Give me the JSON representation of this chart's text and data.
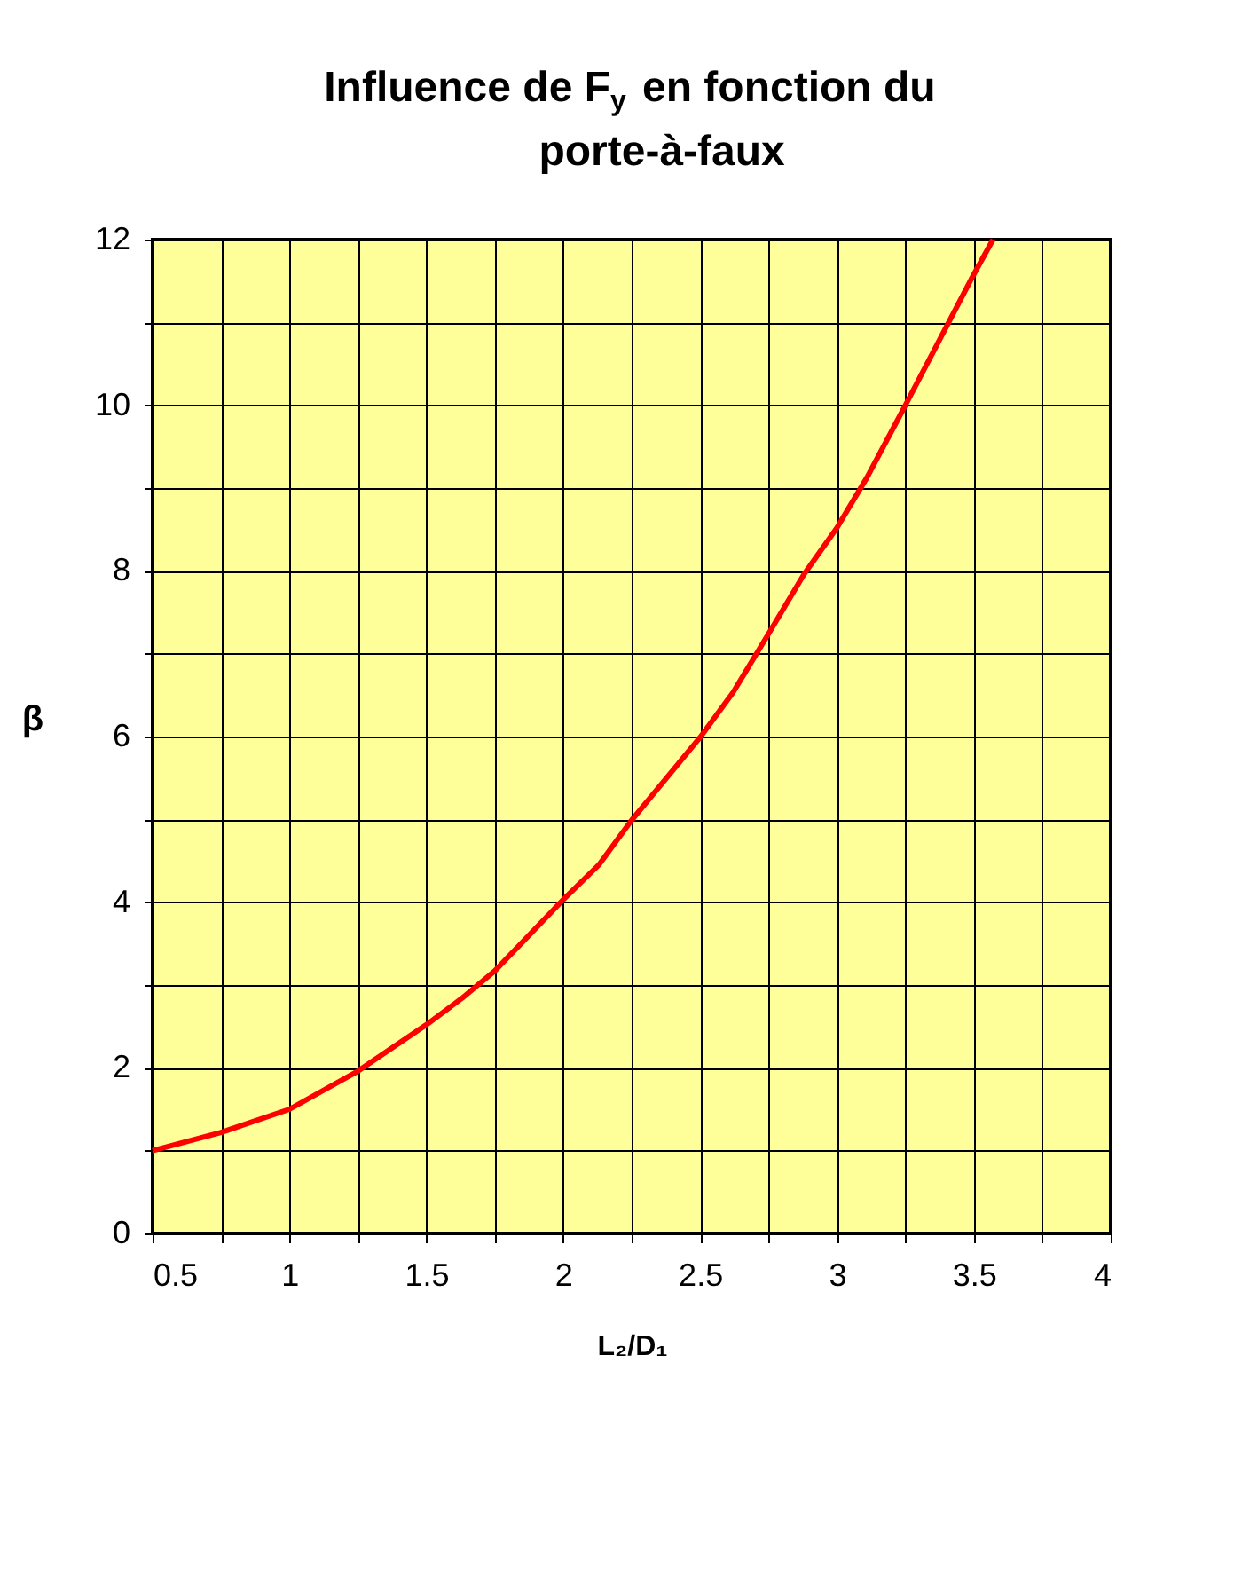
{
  "chart_data": {
    "type": "line",
    "title": "Influence de F$_{y}$ en fonction du porte-à-faux",
    "xlabel": "L₂/D₁",
    "ylabel": "β",
    "x": [
      0.5,
      0.75,
      1.0,
      1.25,
      1.5,
      1.63,
      1.75,
      2.0,
      2.13,
      2.25,
      2.5,
      2.62,
      2.75,
      2.88,
      3.0,
      3.11,
      3.25,
      3.49,
      3.57
    ],
    "series": [
      {
        "color": "#ff0000",
        "values": [
          1.0,
          1.22,
          1.5,
          1.96,
          2.52,
          2.84,
          3.17,
          4.03,
          4.45,
          4.99,
          5.99,
          6.53,
          7.24,
          7.96,
          8.52,
          9.13,
          10.0,
          11.52,
          12.0
        ]
      }
    ],
    "xlim": [
      0.5,
      4
    ],
    "ylim": [
      0,
      12
    ],
    "xticks": [
      0.5,
      {
        "value": 0.75,
        "label": null
      },
      1,
      {
        "value": 1.25,
        "label": null
      },
      1.5,
      {
        "value": 1.75,
        "label": null
      },
      2,
      {
        "value": 2.25,
        "label": null
      },
      2.5,
      {
        "value": 2.75,
        "label": null
      },
      3,
      {
        "value": 3.25,
        "label": null
      },
      3.5,
      {
        "value": 3.75,
        "label": null
      },
      4
    ],
    "yticks": [
      0,
      {
        "value": 1,
        "label": null
      },
      2,
      {
        "value": 3,
        "label": null
      },
      4,
      {
        "value": 5,
        "label": null
      },
      6,
      {
        "value": 7,
        "label": null
      },
      8,
      {
        "value": 9,
        "label": null
      },
      10,
      {
        "value": 11,
        "label": null
      },
      12
    ],
    "grid": true,
    "marker": "none",
    "line_style": "solid"
  }
}
